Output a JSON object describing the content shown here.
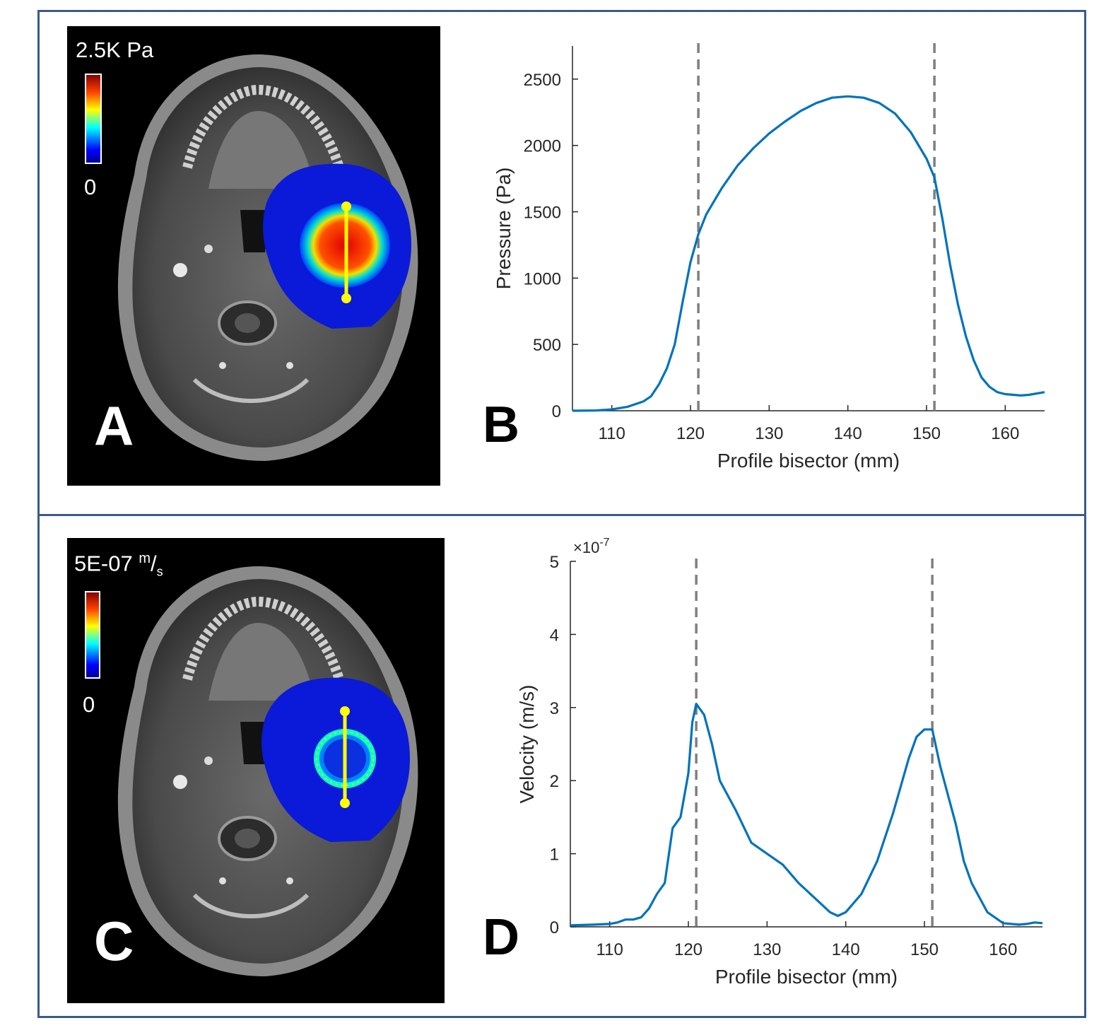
{
  "panels": {
    "A": {
      "letter": "A",
      "colorbar_max": "2.5K Pa",
      "colorbar_min": "0"
    },
    "B": {
      "letter": "B"
    },
    "C": {
      "letter": "C",
      "colorbar_max_value": "5E-07",
      "colorbar_max_unit_num": "m",
      "colorbar_max_unit_den": "s",
      "colorbar_min": "0"
    },
    "D": {
      "letter": "D"
    }
  },
  "colors": {
    "frame": "#3b5a8c",
    "line": "#0072bd",
    "dashed": "#7f7f7f",
    "marker": "#ffff00"
  },
  "chart_data": [
    {
      "id": "B",
      "type": "line",
      "xlabel": "Profile bisector (mm)",
      "ylabel": "Pressure (Pa)",
      "xlim": [
        105,
        165
      ],
      "ylim": [
        0,
        2750
      ],
      "xticks": [
        110,
        120,
        130,
        140,
        150,
        160
      ],
      "yticks": [
        0,
        500,
        1000,
        1500,
        2000,
        2500
      ],
      "exponent_label": "",
      "vlines": [
        121,
        151
      ],
      "x": [
        105,
        108,
        110,
        112,
        114,
        115,
        116,
        117,
        118,
        119,
        120,
        121,
        122,
        124,
        126,
        128,
        130,
        132,
        134,
        136,
        138,
        140,
        142,
        144,
        146,
        148,
        150,
        151,
        152,
        153,
        154,
        155,
        156,
        157,
        158,
        159,
        160,
        162,
        163,
        165
      ],
      "y": [
        0,
        2,
        10,
        30,
        70,
        110,
        200,
        320,
        500,
        820,
        1120,
        1330,
        1480,
        1680,
        1850,
        1980,
        2090,
        2180,
        2260,
        2320,
        2360,
        2370,
        2360,
        2320,
        2240,
        2100,
        1900,
        1760,
        1450,
        1100,
        800,
        560,
        380,
        250,
        180,
        140,
        125,
        115,
        120,
        140
      ]
    },
    {
      "id": "D",
      "type": "line",
      "xlabel": "Profile bisector (mm)",
      "ylabel": "Velocity (m/s)",
      "xlim": [
        105,
        165
      ],
      "ylim": [
        0,
        5
      ],
      "xticks": [
        110,
        120,
        130,
        140,
        150,
        160
      ],
      "yticks": [
        0,
        1,
        2,
        3,
        4,
        5
      ],
      "exponent_label": "×10",
      "exponent_power": "-7",
      "vlines": [
        121,
        151
      ],
      "x": [
        105,
        108,
        110,
        111,
        112,
        113,
        114,
        115,
        116,
        117,
        118,
        119,
        120,
        120.5,
        121,
        122,
        123,
        124,
        126,
        128,
        130,
        132,
        134,
        136,
        138,
        139,
        140,
        142,
        144,
        146,
        148,
        149,
        150,
        151,
        152,
        153,
        154,
        155,
        156,
        158,
        160,
        162,
        163,
        164,
        165
      ],
      "y": [
        0.02,
        0.03,
        0.04,
        0.06,
        0.1,
        0.1,
        0.13,
        0.25,
        0.45,
        0.6,
        1.35,
        1.5,
        2.1,
        2.8,
        3.05,
        2.9,
        2.5,
        2.0,
        1.6,
        1.15,
        1.0,
        0.85,
        0.6,
        0.4,
        0.2,
        0.15,
        0.2,
        0.45,
        0.9,
        1.55,
        2.3,
        2.6,
        2.7,
        2.7,
        2.2,
        1.8,
        1.4,
        0.9,
        0.6,
        0.2,
        0.05,
        0.03,
        0.04,
        0.06,
        0.05
      ]
    }
  ]
}
